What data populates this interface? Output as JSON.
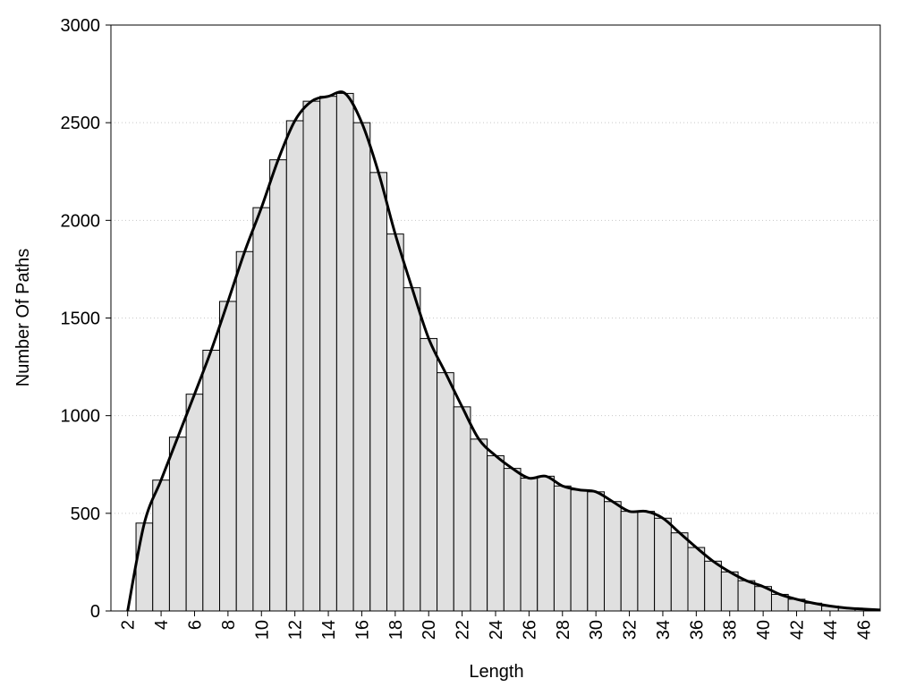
{
  "chart_data": {
    "type": "histogram-line",
    "x_label": "Length",
    "y_label": "Number Of Paths",
    "x": [
      2,
      3,
      4,
      5,
      6,
      7,
      8,
      9,
      10,
      11,
      12,
      13,
      14,
      15,
      16,
      17,
      18,
      19,
      20,
      21,
      22,
      23,
      24,
      25,
      26,
      27,
      28,
      29,
      30,
      31,
      32,
      33,
      34,
      35,
      36,
      37,
      38,
      39,
      40,
      41,
      42,
      43,
      44,
      45,
      46,
      47
    ],
    "values": [
      0,
      450,
      670,
      890,
      1110,
      1335,
      1585,
      1840,
      2065,
      2310,
      2510,
      2610,
      2635,
      2650,
      2500,
      2245,
      1930,
      1655,
      1395,
      1220,
      1045,
      880,
      795,
      730,
      680,
      690,
      640,
      620,
      610,
      560,
      510,
      510,
      475,
      400,
      325,
      255,
      200,
      155,
      125,
      85,
      60,
      40,
      25,
      15,
      10,
      5
    ],
    "bar_color": "#e0e0e0",
    "line_color": "#000000",
    "xlim": [
      1,
      47
    ],
    "xticks": [
      2,
      4,
      6,
      8,
      10,
      12,
      14,
      16,
      18,
      20,
      22,
      24,
      26,
      28,
      30,
      32,
      34,
      36,
      38,
      40,
      42,
      44,
      46
    ],
    "ylim": [
      0,
      3000
    ],
    "yticks": [
      0,
      500,
      1000,
      1500,
      2000,
      2500,
      3000
    ],
    "grid": true
  }
}
